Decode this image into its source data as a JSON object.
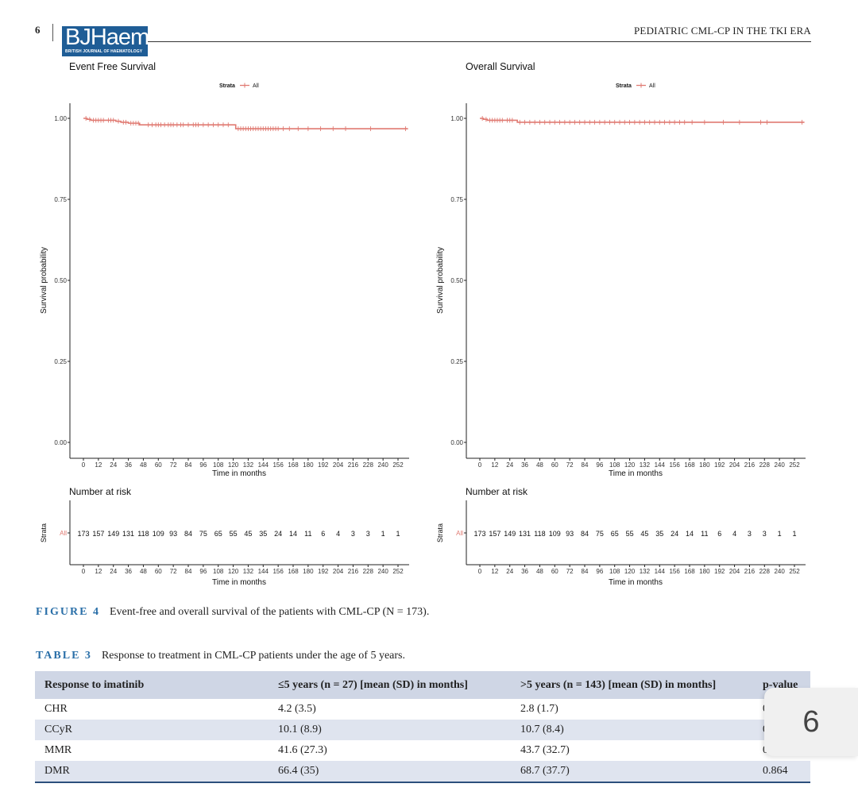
{
  "header": {
    "page_number": "6",
    "logo_text": "BJHaem",
    "logo_subtext": "BRITISH JOURNAL OF HAEMATOLOGY",
    "running_title": "PEDIATRIC CML-CP IN THE TKI ERA"
  },
  "figure": {
    "label": "FIGURE 4",
    "caption": "Event-free and overall survival of the patients with CML-CP (N = 173)."
  },
  "chart_data": [
    {
      "type": "line",
      "title": "Event Free Survival",
      "legend_title": "Strata",
      "legend_entry": "All",
      "legend_position": "top",
      "xlabel": "Time in months",
      "ylabel": "Survival probability",
      "xlim": [
        0,
        252
      ],
      "ylim": [
        0,
        1
      ],
      "x_ticks": [
        0,
        12,
        24,
        36,
        48,
        60,
        72,
        84,
        96,
        108,
        120,
        132,
        144,
        156,
        168,
        180,
        192,
        204,
        216,
        228,
        240,
        252
      ],
      "y_ticks": [
        "0.00",
        "0.25",
        "0.50",
        "0.75",
        "1.00"
      ],
      "color": "#e07a72",
      "series": [
        {
          "name": "All",
          "x": [
            0,
            3,
            6,
            18,
            26,
            30,
            36,
            45,
            50,
            122,
            170,
            260
          ],
          "y": [
            1.0,
            0.997,
            0.994,
            0.994,
            0.991,
            0.988,
            0.985,
            0.98,
            0.98,
            0.968,
            0.968,
            0.968
          ]
        }
      ],
      "censor_x": [
        2,
        5,
        8,
        10,
        12,
        14,
        16,
        20,
        22,
        24,
        28,
        32,
        34,
        38,
        40,
        42,
        44,
        52,
        55,
        58,
        60,
        62,
        65,
        68,
        70,
        72,
        75,
        78,
        80,
        84,
        88,
        90,
        92,
        96,
        100,
        104,
        108,
        112,
        116,
        124,
        126,
        128,
        130,
        132,
        134,
        136,
        138,
        140,
        142,
        144,
        146,
        148,
        150,
        152,
        154,
        156,
        160,
        165,
        172,
        180,
        190,
        200,
        210,
        230,
        258
      ],
      "risk_table": {
        "title": "Number at risk",
        "ylabel": "Strata",
        "strata": "All",
        "xlabel": "Time in months",
        "values": [
          "173",
          "157",
          "149",
          "131",
          "118",
          "109",
          "93",
          "84",
          "75",
          "65",
          "55",
          "45",
          "35",
          "24",
          "14",
          "11",
          "6",
          "4",
          "3",
          "3",
          "1",
          "1"
        ]
      }
    },
    {
      "type": "line",
      "title": "Overall Survival",
      "legend_title": "Strata",
      "legend_entry": "All",
      "legend_position": "top",
      "xlabel": "Time in months",
      "ylabel": "Survival probability",
      "xlim": [
        0,
        252
      ],
      "ylim": [
        0,
        1
      ],
      "x_ticks": [
        0,
        12,
        24,
        36,
        48,
        60,
        72,
        84,
        96,
        108,
        120,
        132,
        144,
        156,
        168,
        180,
        192,
        204,
        216,
        228,
        240,
        252
      ],
      "y_ticks": [
        "0.00",
        "0.25",
        "0.50",
        "0.75",
        "1.00"
      ],
      "color": "#e07a72",
      "series": [
        {
          "name": "All",
          "x": [
            0,
            3,
            6,
            20,
            30,
            260
          ],
          "y": [
            1.0,
            0.997,
            0.994,
            0.994,
            0.988,
            0.988
          ]
        }
      ],
      "censor_x": [
        2,
        5,
        8,
        10,
        12,
        14,
        16,
        18,
        22,
        24,
        26,
        32,
        36,
        40,
        44,
        48,
        52,
        56,
        60,
        64,
        68,
        72,
        76,
        80,
        84,
        88,
        92,
        96,
        100,
        104,
        108,
        112,
        116,
        120,
        124,
        128,
        132,
        136,
        140,
        144,
        148,
        152,
        156,
        160,
        164,
        170,
        180,
        195,
        208,
        225,
        230,
        258
      ],
      "risk_table": {
        "title": "Number at risk",
        "ylabel": "Strata",
        "strata": "All",
        "xlabel": "Time in months",
        "values": [
          "173",
          "157",
          "149",
          "131",
          "118",
          "109",
          "93",
          "84",
          "75",
          "65",
          "55",
          "45",
          "35",
          "24",
          "14",
          "11",
          "6",
          "4",
          "3",
          "3",
          "1",
          "1"
        ]
      }
    }
  ],
  "table": {
    "label": "TABLE 3",
    "caption": "Response to treatment in CML-CP patients under the age of 5 years.",
    "headers": [
      "Response to imatinib",
      "≤5 years (n = 27) [mean (SD) in months]",
      ">5 years (n = 143) [mean (SD) in months]",
      "p-value"
    ],
    "rows": [
      [
        "CHR",
        "4.2 (3.5)",
        "2.8 (1.7)",
        "0.0"
      ],
      [
        "CCyR",
        "10.1 (8.9)",
        "10.7 (8.4)",
        "0.7"
      ],
      [
        "MMR",
        "41.6 (27.3)",
        "43.7 (32.7)",
        "0.803"
      ],
      [
        "DMR",
        "66.4 (35)",
        "68.7 (37.7)",
        "0.864"
      ]
    ]
  },
  "page_badge": "6"
}
